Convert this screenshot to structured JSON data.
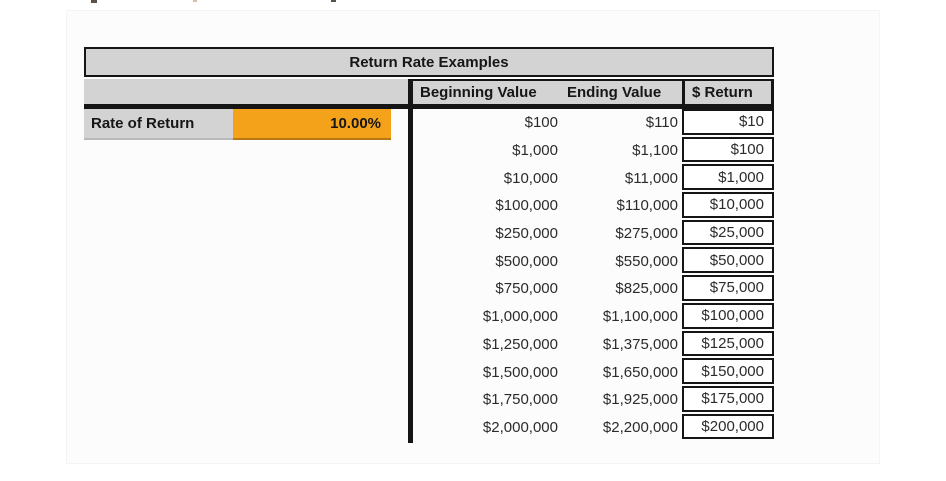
{
  "title": "Return Rate Examples",
  "rate": {
    "label": "Rate of Return",
    "value": "10.00%"
  },
  "columns": {
    "beginning": "Beginning Value",
    "ending": "Ending Value",
    "return": "$ Return"
  },
  "rows": [
    {
      "beginning": "$100",
      "ending": "$110",
      "return": "$10"
    },
    {
      "beginning": "$1,000",
      "ending": "$1,100",
      "return": "$100"
    },
    {
      "beginning": "$10,000",
      "ending": "$11,000",
      "return": "$1,000"
    },
    {
      "beginning": "$100,000",
      "ending": "$110,000",
      "return": "$10,000"
    },
    {
      "beginning": "$250,000",
      "ending": "$275,000",
      "return": "$25,000"
    },
    {
      "beginning": "$500,000",
      "ending": "$550,000",
      "return": "$50,000"
    },
    {
      "beginning": "$750,000",
      "ending": "$825,000",
      "return": "$75,000"
    },
    {
      "beginning": "$1,000,000",
      "ending": "$1,100,000",
      "return": "$100,000"
    },
    {
      "beginning": "$1,250,000",
      "ending": "$1,375,000",
      "return": "$125,000"
    },
    {
      "beginning": "$1,500,000",
      "ending": "$1,650,000",
      "return": "$150,000"
    },
    {
      "beginning": "$1,750,000",
      "ending": "$1,925,000",
      "return": "$175,000"
    },
    {
      "beginning": "$2,000,000",
      "ending": "$2,200,000",
      "return": "$200,000"
    }
  ],
  "colors": {
    "header_gray": "#d3d3d3",
    "accent_orange": "#f5a21b",
    "border_black": "#151515"
  }
}
